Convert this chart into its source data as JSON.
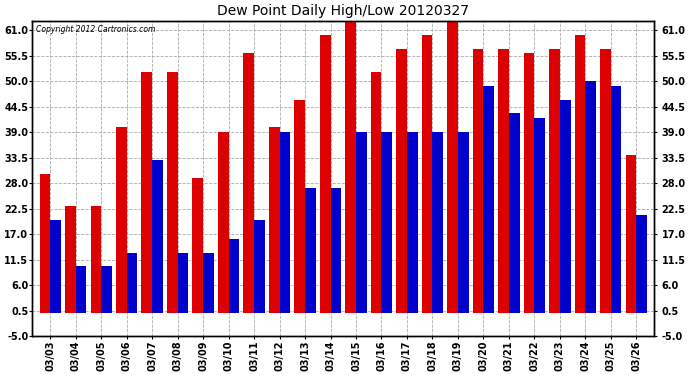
{
  "title": "Dew Point Daily High/Low 20120327",
  "copyright": "Copyright 2012 Cartronics.com",
  "dates": [
    "03/03",
    "03/04",
    "03/05",
    "03/06",
    "03/07",
    "03/08",
    "03/09",
    "03/10",
    "03/11",
    "03/12",
    "03/13",
    "03/14",
    "03/15",
    "03/16",
    "03/17",
    "03/18",
    "03/19",
    "03/20",
    "03/21",
    "03/22",
    "03/23",
    "03/24",
    "03/25",
    "03/26"
  ],
  "highs": [
    30,
    23,
    23,
    40,
    52,
    52,
    29,
    39,
    56,
    40,
    46,
    60,
    63,
    52,
    57,
    60,
    63,
    57,
    57,
    56,
    57,
    60,
    57,
    34
  ],
  "lows": [
    20,
    10,
    10,
    13,
    33,
    13,
    13,
    16,
    20,
    39,
    27,
    27,
    39,
    39,
    39,
    39,
    39,
    49,
    43,
    42,
    46,
    50,
    49,
    21
  ],
  "high_color": "#dd0000",
  "low_color": "#0000cc",
  "ylim": [
    -5,
    63
  ],
  "yticks": [
    -5.0,
    0.5,
    6.0,
    11.5,
    17.0,
    22.5,
    28.0,
    33.5,
    39.0,
    44.5,
    50.0,
    55.5,
    61.0
  ],
  "ytick_labels": [
    "-5.0",
    "0.5",
    "6.0",
    "11.5",
    "17.0",
    "22.5",
    "28.0",
    "33.5",
    "39.0",
    "44.5",
    "50.0",
    "55.5",
    "61.0"
  ],
  "background_color": "#ffffff",
  "bar_width": 0.42,
  "figwidth": 6.9,
  "figheight": 3.75,
  "dpi": 100
}
